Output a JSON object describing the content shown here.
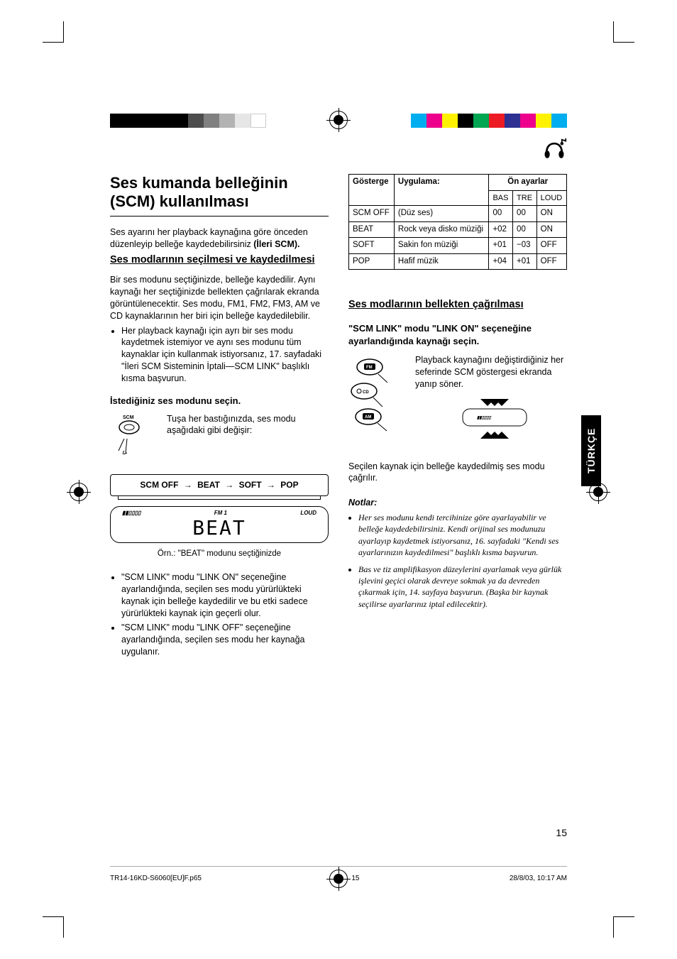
{
  "colorbars": {
    "left": [
      "#000000",
      "#000000",
      "#000000",
      "#000000",
      "#000000",
      "#4d4d4d",
      "#808080",
      "#b3b3b3",
      "#e6e6e6",
      "#ffffff"
    ],
    "right": [
      "#00aeef",
      "#ec008c",
      "#fff200",
      "#000000",
      "#00a651",
      "#ed1c24",
      "#2e3192",
      "#ec008c",
      "#fff200",
      "#00aeef"
    ]
  },
  "heading": "Ses kumanda belleğinin (SCM) kullanılması",
  "intro": {
    "text": "Ses ayarını her playback kaynağına göre önceden düzenleyip belleğe kaydedebilirsiniz ",
    "bold": "(İleri SCM)."
  },
  "section1": {
    "title": "Ses modlarının seçilmesi ve kaydedilmesi",
    "p1": "Bir ses modunu seçtiğinizde, belleğe kaydedilir. Aynı kaynağı her seçtiğinizde bellekten çağrılarak ekranda görüntülenecektir. Ses modu, FM1, FM2, FM3, AM ve CD kaynaklarının her biri için belleğe kaydedilebilir.",
    "bullet1": "Her playback kaynağı için ayrı bir ses modu kaydetmek istemiyor ve aynı ses modunu tüm kaynaklar için kullanmak istiyorsanız, 17. sayfadaki \"İleri SCM Sisteminin İptali—SCM LINK\" başlıklı kısma başvurun.",
    "h3": "İstediğiniz ses modunu seçin.",
    "scm_label": "SCM",
    "scm_text": "Tuşa her bastığınızda, ses modu aşağıdaki gibi değişir:",
    "flow": [
      "SCM OFF",
      "BEAT",
      "SOFT",
      "POP"
    ],
    "lcd": {
      "left": "",
      "fm": "FM 1",
      "loud": "LOUD",
      "big": "BEAT"
    },
    "lcd_caption": "Örn.: \"BEAT\" modunu seçtiğinizde",
    "bullet2": "\"SCM LINK\" modu \"LINK ON\" seçeneğine ayarlandığında, seçilen ses modu yürürlükteki kaynak için belleğe kaydedilir ve bu etki sadece yürürlükteki kaynak için geçerli olur.",
    "bullet3": "\"SCM LINK\" modu \"LINK OFF\" seçeneğine ayarlandığında, seçilen ses modu her kaynağa uygulanır."
  },
  "table": {
    "head": {
      "c1": "Gösterge",
      "c2": "Uygulama:",
      "c3": "Ön ayarlar"
    },
    "sub": [
      "BAS",
      "TRE",
      "LOUD"
    ],
    "rows": [
      {
        "c1": "SCM OFF",
        "c2": "(Düz ses)",
        "bas": "00",
        "tre": "00",
        "loud": "ON"
      },
      {
        "c1": "BEAT",
        "c2": "Rock veya disko müziği",
        "bas": "+02",
        "tre": "00",
        "loud": "ON"
      },
      {
        "c1": "SOFT",
        "c2": "Sakin fon müziği",
        "bas": "+01",
        "tre": "−03",
        "loud": "OFF"
      },
      {
        "c1": "POP",
        "c2": "Hafif müzik",
        "bas": "+04",
        "tre": "+01",
        "loud": "OFF"
      }
    ]
  },
  "section2": {
    "title": "Ses modlarının bellekten çağrılması",
    "h3": "\"SCM LINK\" modu \"LINK ON\" seçeneğine ayarlandığında kaynağı seçin.",
    "src_labels": {
      "fm": "FM",
      "cd": "CD",
      "am": "AM"
    },
    "src_text": "Playback kaynağını değiştirdiğiniz her seferinde SCM göstergesi ekranda yanıp söner.",
    "p_after": "Seçilen kaynak için belleğe kaydedilmiş ses modu çağrılır."
  },
  "notes": {
    "title": "Notlar:",
    "items": [
      "Her ses modunu kendi tercihinize göre ayarlayabilir ve belleğe kaydedebilirsiniz. Kendi orijinal ses modunuzu ayarlayıp kaydetmek istiyorsanız, 16. sayfadaki \"Kendi ses ayarlarınızın kaydedilmesi\" başlıklı kısma başvurun.",
      "Bas ve tiz amplifikasyon düzeylerini ayarlamak veya gürlük işlevini geçici olarak devreye sokmak ya da devreden çıkarmak için, 14. sayfaya başvurun. (Başka bir kaynak seçilirse ayarlarınız iptal edilecektir)."
    ]
  },
  "side_tab": "TÜRKÇE",
  "page_number": "15",
  "footer": {
    "file": "TR14-16KD-S6060[EU]F.p65",
    "page": "15",
    "date": "28/8/03, 10:17 AM"
  }
}
